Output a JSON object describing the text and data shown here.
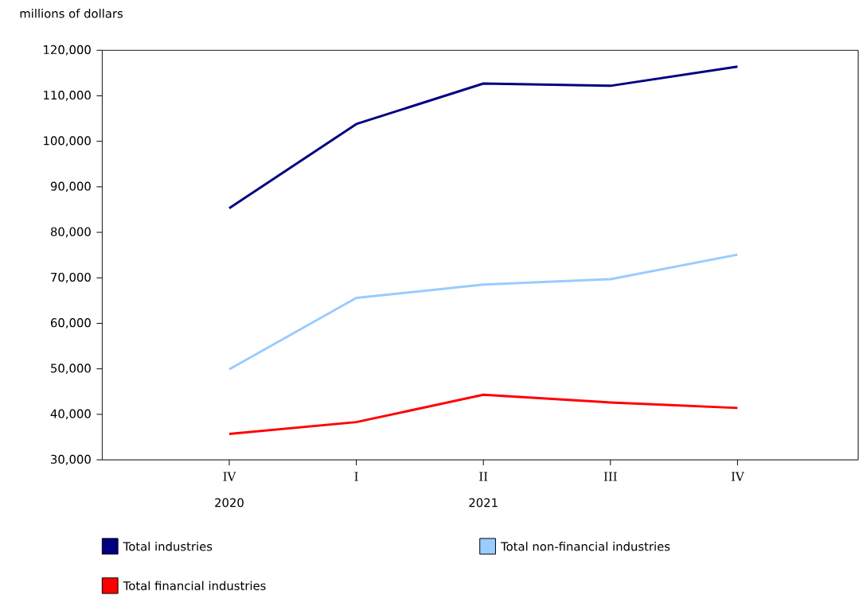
{
  "chart_data": {
    "type": "line",
    "ylabel": "millions of dollars",
    "categories": [
      "IV",
      "I",
      "II",
      "III",
      "IV"
    ],
    "annotations": [
      "2020",
      "2021"
    ],
    "series": [
      {
        "name": "Total industries",
        "color": "#000080",
        "values": [
          85300,
          103800,
          112700,
          112200,
          116400
        ]
      },
      {
        "name": "Total non-financial industries",
        "color": "#99ccff",
        "values": [
          49900,
          65600,
          68500,
          69700,
          75100
        ]
      },
      {
        "name": "Total financial industries",
        "color": "#ff0000",
        "values": [
          35700,
          38300,
          44300,
          42600,
          41400
        ]
      }
    ],
    "ylim": [
      30000,
      120000
    ],
    "yticks": [
      {
        "value": 30000,
        "label": "30,000"
      },
      {
        "value": 40000,
        "label": "40,000"
      },
      {
        "value": 50000,
        "label": "50,000"
      },
      {
        "value": 60000,
        "label": "60,000"
      },
      {
        "value": 70000,
        "label": "70,000"
      },
      {
        "value": 80000,
        "label": "80,000"
      },
      {
        "value": 90000,
        "label": "90,000"
      },
      {
        "value": 100000,
        "label": "100,000"
      },
      {
        "value": 110000,
        "label": "110,000"
      },
      {
        "value": 120000,
        "label": "120,000"
      }
    ],
    "grid": false,
    "legend": "bottom",
    "marker": "none",
    "line_style": "solid"
  }
}
